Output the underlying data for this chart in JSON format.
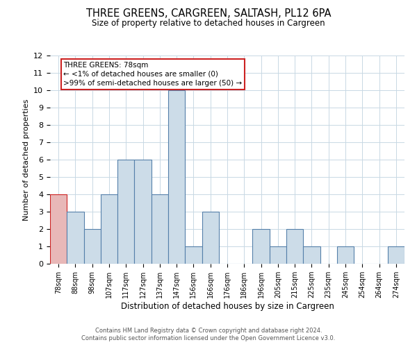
{
  "title": "THREE GREENS, CARGREEN, SALTASH, PL12 6PA",
  "subtitle": "Size of property relative to detached houses in Cargreen",
  "xlabel": "Distribution of detached houses by size in Cargreen",
  "ylabel": "Number of detached properties",
  "bar_labels": [
    "78sqm",
    "88sqm",
    "98sqm",
    "107sqm",
    "117sqm",
    "127sqm",
    "137sqm",
    "147sqm",
    "156sqm",
    "166sqm",
    "176sqm",
    "186sqm",
    "196sqm",
    "205sqm",
    "215sqm",
    "225sqm",
    "235sqm",
    "245sqm",
    "254sqm",
    "264sqm",
    "274sqm"
  ],
  "bar_heights": [
    4,
    3,
    2,
    4,
    6,
    6,
    4,
    10,
    1,
    3,
    0,
    0,
    2,
    1,
    2,
    1,
    0,
    1,
    0,
    0,
    1
  ],
  "bar_color": "#ccdce8",
  "bar_edge_color": "#5580aa",
  "highlight_bar_index": 0,
  "highlight_color": "#e8b8b8",
  "highlight_edge_color": "#cc2222",
  "ylim": [
    0,
    12
  ],
  "yticks": [
    0,
    1,
    2,
    3,
    4,
    5,
    6,
    7,
    8,
    9,
    10,
    11,
    12
  ],
  "annotation_text": "THREE GREENS: 78sqm\n← <1% of detached houses are smaller (0)\n>99% of semi-detached houses are larger (50) →",
  "annotation_box_edge": "#cc2222",
  "footer_line1": "Contains HM Land Registry data © Crown copyright and database right 2024.",
  "footer_line2": "Contains public sector information licensed under the Open Government Licence v3.0.",
  "bg_color": "#ffffff",
  "grid_color": "#c8d8e4"
}
